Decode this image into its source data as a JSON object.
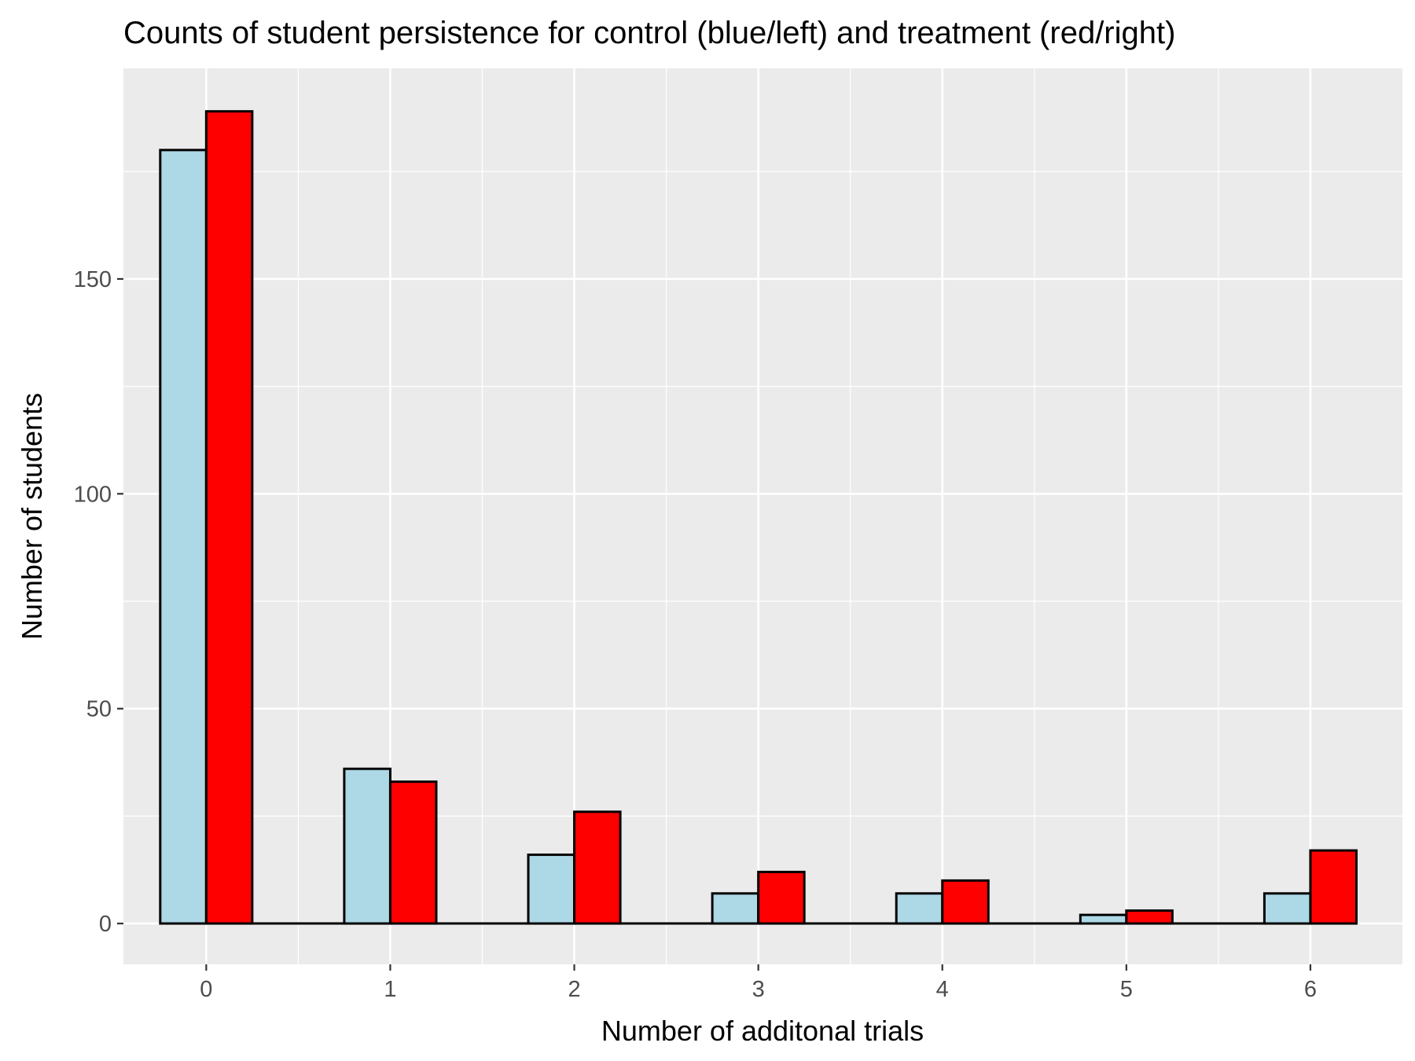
{
  "chart_data": {
    "type": "bar",
    "title": "Counts of student persistence for control (blue/left) and treatment (red/right)",
    "xlabel": "Number of additonal trials",
    "ylabel": "Number of students",
    "categories": [
      "0",
      "1",
      "2",
      "3",
      "4",
      "5",
      "6"
    ],
    "series": [
      {
        "values": [
          180,
          36,
          16,
          7,
          7,
          2,
          7
        ],
        "color": "#add8e6"
      },
      {
        "values": [
          189,
          33,
          26,
          12,
          10,
          3,
          17
        ],
        "color": "#ff0000"
      }
    ],
    "xlim": [
      -0.45,
      6.5
    ],
    "ylim": [
      -9.5,
      199
    ],
    "yticks": [
      "0",
      "50",
      "100",
      "150"
    ],
    "grid": true,
    "legend": "none",
    "colors": {
      "panel_background": "#ebebeb",
      "grid": "#ffffff",
      "bar_outline": "#000000"
    }
  }
}
